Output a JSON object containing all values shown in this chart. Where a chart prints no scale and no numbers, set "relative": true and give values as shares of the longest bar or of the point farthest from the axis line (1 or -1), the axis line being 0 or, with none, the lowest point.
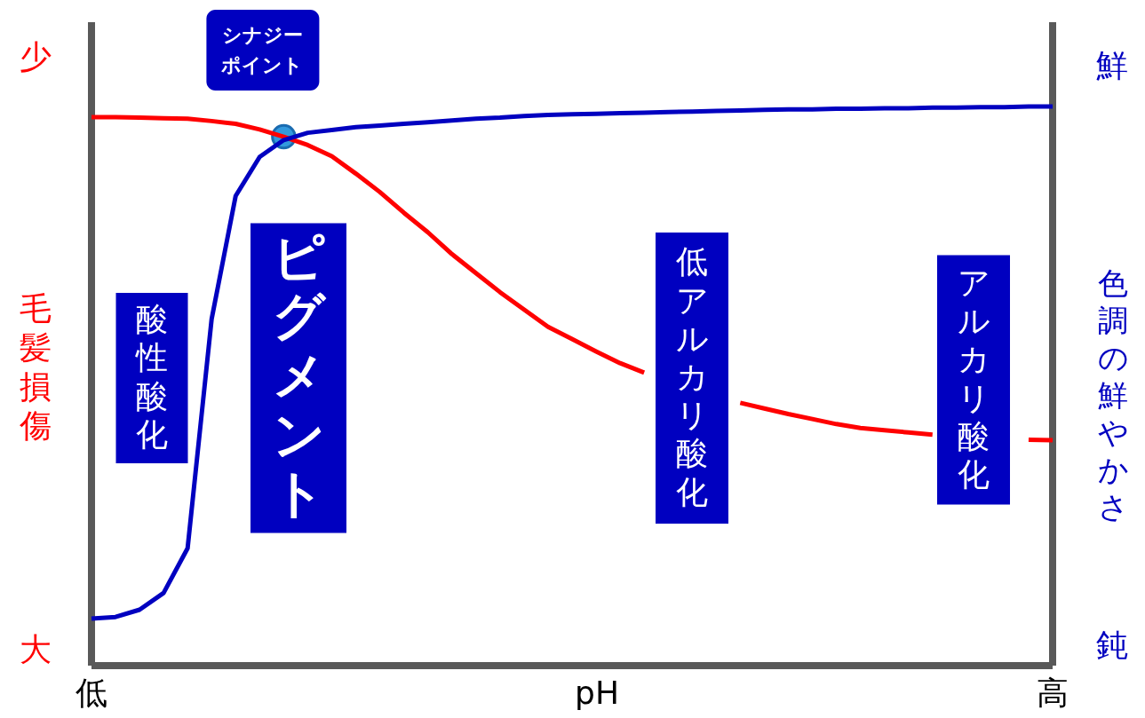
{
  "chart_data": {
    "type": "line",
    "relative": true,
    "xlabel": "pH",
    "ylabel": "毛髪損傷",
    "y2label": "色調の鮮やかさ",
    "marker": "none",
    "line_style": "solid",
    "categories": [
      null,
      null,
      null,
      null,
      null,
      null,
      null,
      null,
      null,
      null,
      null,
      null,
      null,
      null,
      null,
      null,
      null,
      null,
      null,
      null,
      null,
      null,
      null,
      null,
      null,
      null,
      null,
      null,
      null,
      null,
      null,
      null,
      null,
      null,
      null,
      null,
      null,
      null,
      null,
      null,
      null
    ],
    "series": [
      {
        "color": "#ff0000",
        "values": [
          0.981,
          0.981,
          0.98,
          0.979,
          0.978,
          0.974,
          0.969,
          0.959,
          0.946,
          0.931,
          0.911,
          0.88,
          0.847,
          0.81,
          0.775,
          0.736,
          0.702,
          0.668,
          0.637,
          0.606,
          0.584,
          0.562,
          0.541,
          0.524,
          null,
          null,
          null,
          0.47,
          0.46,
          0.45,
          0.441,
          0.432,
          0.425,
          0.421,
          0.417,
          0.413,
          null,
          null,
          null,
          0.404,
          0.403
        ]
      },
      {
        "color": "#0000c0",
        "values": [
          0.084,
          0.087,
          0.1,
          0.13,
          0.21,
          0.62,
          0.84,
          0.91,
          0.94,
          0.953,
          0.958,
          0.963,
          0.966,
          0.969,
          0.972,
          0.975,
          0.978,
          0.98,
          0.983,
          0.985,
          0.986,
          0.987,
          0.988,
          0.989,
          0.99,
          0.991,
          0.992,
          0.993,
          0.994,
          0.995,
          0.995,
          0.996,
          0.996,
          0.997,
          0.997,
          0.998,
          0.998,
          0.999,
          0.999,
          1,
          1
        ]
      }
    ],
    "annotations": [
      "少",
      "大",
      "鮮",
      "鈍",
      "低",
      "高",
      "酸性酸化",
      "ピグメント",
      "低アルカリ酸化",
      "アルカリ酸化",
      "シナジーポイント"
    ]
  }
}
